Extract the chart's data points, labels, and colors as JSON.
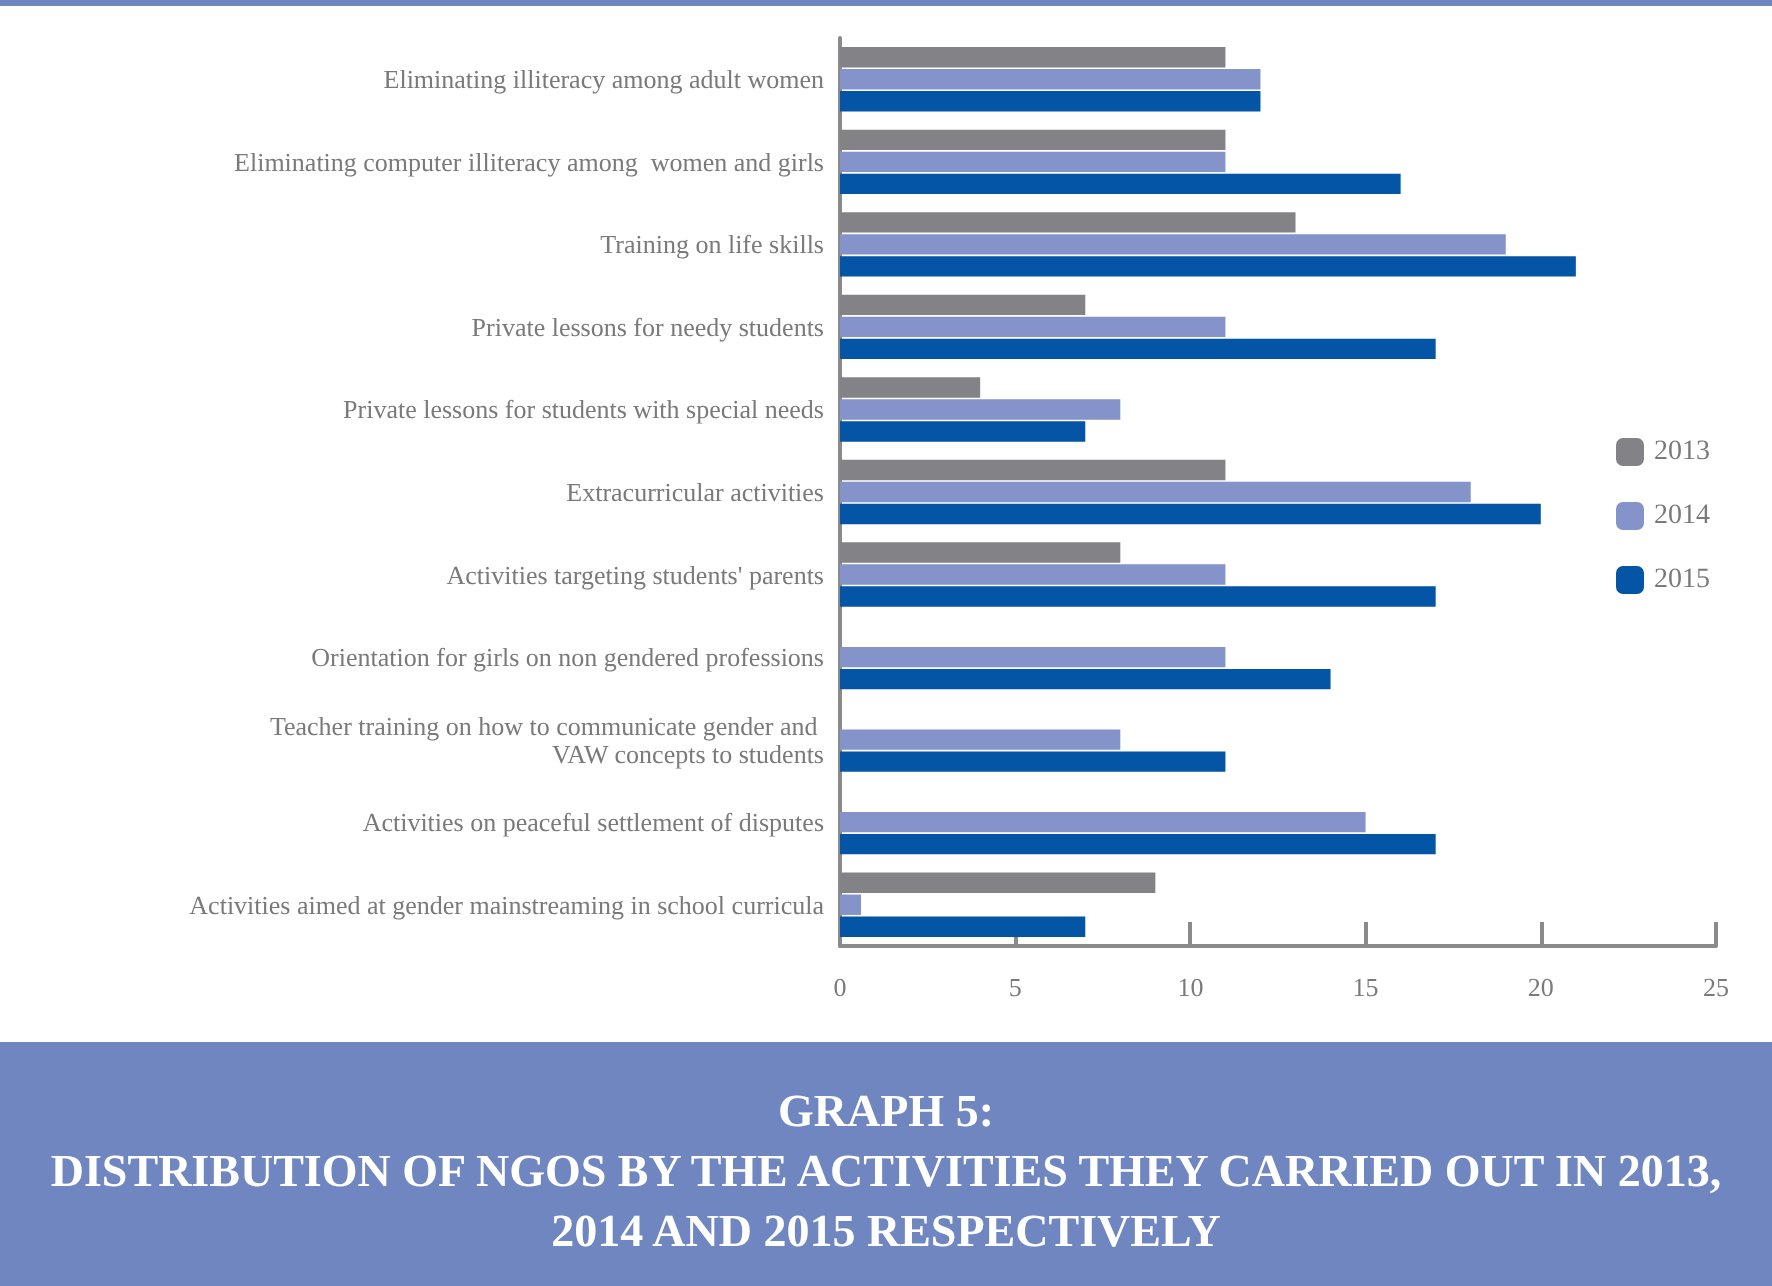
{
  "chart_data": {
    "type": "bar",
    "orientation": "horizontal",
    "title": "GRAPH 5:",
    "subtitle": "DISTRIBUTION OF NGOS BY THE ACTIVITIES THEY CARRIED OUT IN 2013, 2014 AND 2015 RESPECTIVELY",
    "categories": [
      "Eliminating illiteracy among adult women",
      "Eliminating computer illiteracy among  women and girls",
      "Training on life skills",
      "Private lessons for needy students",
      "Private lessons for students with special needs",
      "Extracurricular activities",
      "Activities targeting students' parents",
      "Orientation for girls on non gendered professions",
      "Teacher training on how to communicate gender and \nVAW concepts to students",
      "Activities on peaceful settlement of disputes",
      "Activities aimed at gender mainstreaming in school curricula"
    ],
    "series": [
      {
        "name": "2013",
        "color": "#838387",
        "values": [
          11,
          11,
          13,
          7,
          4,
          11,
          8,
          null,
          null,
          null,
          9
        ]
      },
      {
        "name": "2014",
        "color": "#8493c9",
        "values": [
          12,
          11,
          19,
          11,
          8,
          18,
          11,
          11,
          8,
          15,
          0.6
        ]
      },
      {
        "name": "2015",
        "color": "#0455a6",
        "values": [
          12,
          16,
          21,
          17,
          7,
          20,
          17,
          14,
          11,
          17,
          7
        ]
      }
    ],
    "xlim": [
      0,
      25
    ],
    "xticks": [
      0,
      5,
      10,
      15,
      20,
      25
    ],
    "grid": false,
    "legend": "right"
  }
}
